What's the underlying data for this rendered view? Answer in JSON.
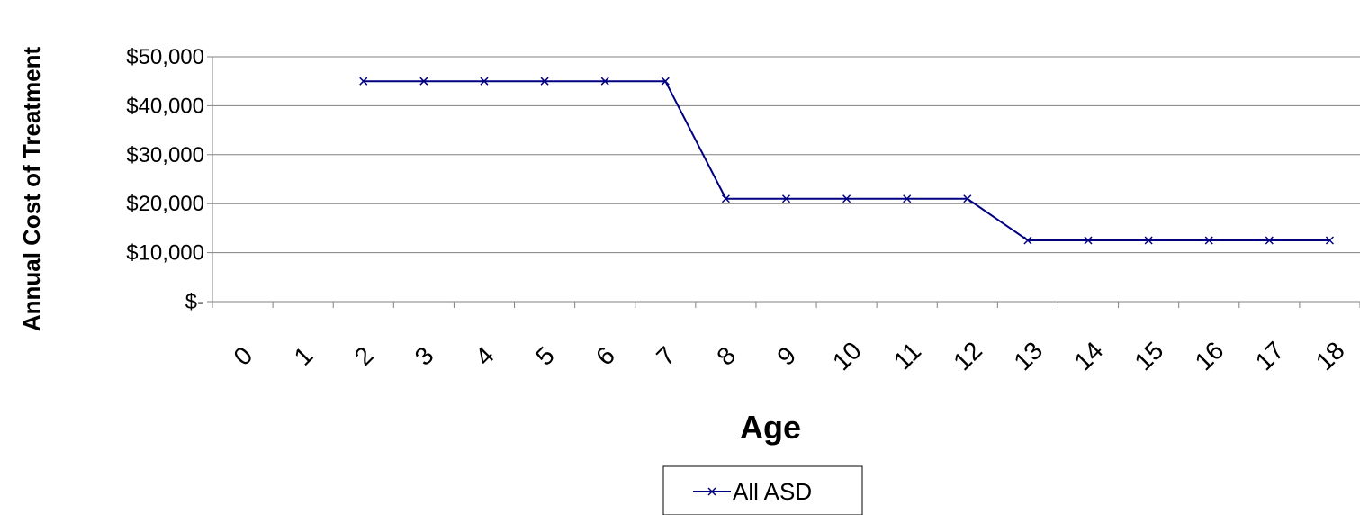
{
  "chart_data": {
    "type": "line",
    "title": "",
    "xlabel": "Age",
    "ylabel": "Annual Cost of Treatment",
    "categories": [
      "0",
      "1",
      "2",
      "3",
      "4",
      "5",
      "6",
      "7",
      "8",
      "9",
      "10",
      "11",
      "12",
      "13",
      "14",
      "15",
      "16",
      "17",
      "18"
    ],
    "y_tick_labels": [
      "$-",
      "$10,000",
      "$20,000",
      "$30,000",
      "$40,000",
      "$50,000"
    ],
    "y_tick_values": [
      0,
      10000,
      20000,
      30000,
      40000,
      50000
    ],
    "ylim": [
      0,
      50000
    ],
    "grid": "horizontal",
    "legend_position": "bottom",
    "series": [
      {
        "name": "All ASD",
        "color": "#000080",
        "marker": "x",
        "values": [
          null,
          null,
          45000,
          45000,
          45000,
          45000,
          45000,
          45000,
          21000,
          21000,
          21000,
          21000,
          21000,
          12500,
          12500,
          12500,
          12500,
          12500,
          12500
        ]
      }
    ]
  }
}
